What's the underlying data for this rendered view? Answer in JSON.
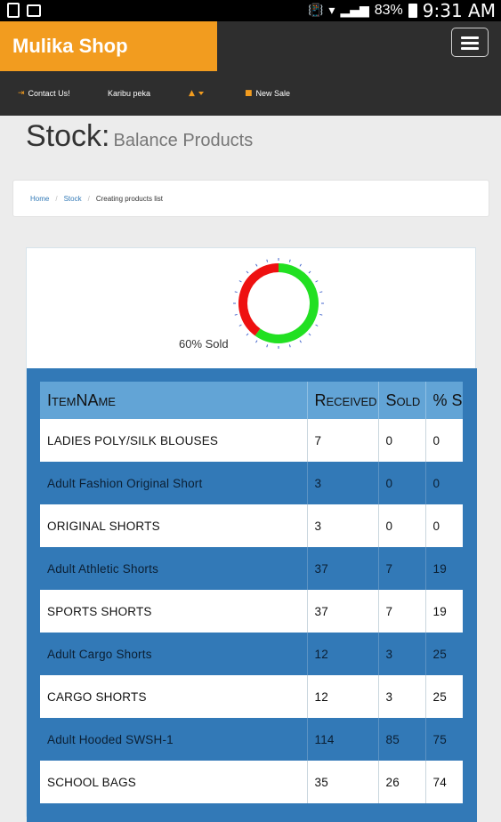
{
  "status_bar": {
    "battery": "83%",
    "time": "9:31 AM"
  },
  "header": {
    "brand": "Mulika Shop",
    "nav": [
      {
        "label": "Contact Us!",
        "icon": "sign-in-icon"
      },
      {
        "label": "Karibu peka",
        "icon": ""
      },
      {
        "label": "",
        "icon": "user-icon"
      },
      {
        "label": "New Sale",
        "icon": "cart-icon"
      }
    ]
  },
  "page": {
    "title": "Stock:",
    "subtitle": "Balance Products"
  },
  "breadcrumb": {
    "items": [
      "Home",
      "Stock",
      "Creating products list"
    ]
  },
  "gauge": {
    "label": "60% Sold",
    "sold_fraction": 0.6,
    "sold_color": "#22e022",
    "unsold_color": "#ee1111"
  },
  "table": {
    "columns": [
      "ItemNAme",
      "Received",
      "Sold",
      "% Sold"
    ],
    "rows": [
      {
        "name": "LADIES POLY/SILK BLOUSES",
        "received": "7",
        "sold": "0",
        "pct": "0"
      },
      {
        "name": "Adult Fashion Original Short",
        "received": "3",
        "sold": "0",
        "pct": "0"
      },
      {
        "name": "ORIGINAL SHORTS",
        "received": "3",
        "sold": "0",
        "pct": "0"
      },
      {
        "name": "Adult Athletic Shorts",
        "received": "37",
        "sold": "7",
        "pct": "19"
      },
      {
        "name": "SPORTS SHORTS",
        "received": "37",
        "sold": "7",
        "pct": "19"
      },
      {
        "name": "Adult Cargo Shorts",
        "received": "12",
        "sold": "3",
        "pct": "25"
      },
      {
        "name": "CARGO SHORTS",
        "received": "12",
        "sold": "3",
        "pct": "25"
      },
      {
        "name": "Adult Hooded SWSH-1",
        "received": "114",
        "sold": "85",
        "pct": "75"
      },
      {
        "name": "SCHOOL BAGS",
        "received": "35",
        "sold": "26",
        "pct": "74"
      }
    ]
  },
  "colors": {
    "brand": "#f29c1f",
    "header_bg": "#2e2e2e",
    "table_blue": "#3279b7",
    "table_header": "#62a4d6"
  }
}
